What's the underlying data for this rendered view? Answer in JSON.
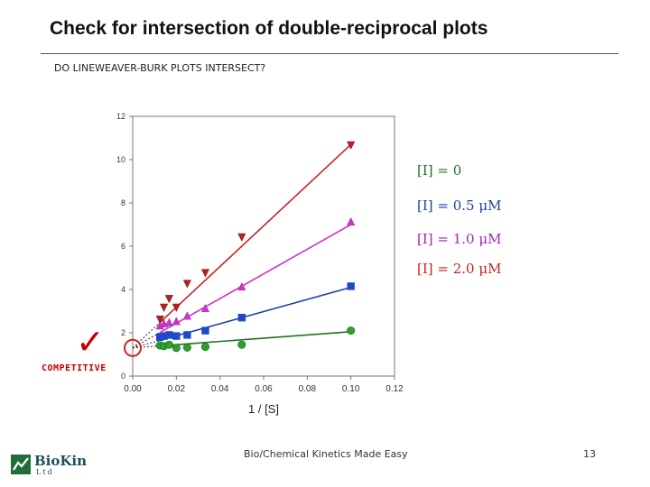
{
  "slide": {
    "title": "Check for intersection of double-reciprocal plots",
    "question": "DO LINEWEAVER-BURK PLOTS INTERSECT?",
    "check_mark": "✓",
    "check_label": "COMPETITIVE",
    "footer": "Bio/Chemical Kinetics Made Easy",
    "page_number": "13"
  },
  "logo": {
    "name": "BioKin",
    "subtitle": "Ltd"
  },
  "legend": [
    {
      "label": "[I] = 0",
      "color": "#207020"
    },
    {
      "label": "[I] = 0.5 μM",
      "color": "#1f3ea0"
    },
    {
      "label": "[I] = 1.0 μM",
      "color": "#9a2aa8"
    },
    {
      "label": "[I] = 2.0 μM",
      "color": "#c62020"
    }
  ],
  "chart_data": {
    "type": "scatter",
    "title": "",
    "xlabel": "1 / [S]",
    "ylabel": "",
    "xlim": [
      0,
      0.12
    ],
    "ylim": [
      0,
      12
    ],
    "x_ticks": [
      "0.00",
      "0.02",
      "0.04",
      "0.06",
      "0.08",
      "0.10",
      "0.12"
    ],
    "y_ticks": [
      "0",
      "2",
      "4",
      "6",
      "8",
      "10",
      "12"
    ],
    "grid": false,
    "series": [
      {
        "color": "#2ca02c",
        "line_color": "#207020",
        "marker": "circle",
        "x": [
          0.0125,
          0.0143,
          0.0167,
          0.02,
          0.025,
          0.0333,
          0.05,
          0.1
        ],
        "y": [
          1.42,
          1.38,
          1.45,
          1.3,
          1.32,
          1.35,
          1.45,
          2.1
        ],
        "fit": {
          "intercept": 1.3,
          "slope": 7.5
        }
      },
      {
        "color": "#1f49c8",
        "line_color": "#1f3ea0",
        "marker": "square",
        "x": [
          0.0125,
          0.0143,
          0.0167,
          0.02,
          0.025,
          0.0333,
          0.05,
          0.1
        ],
        "y": [
          1.8,
          1.85,
          1.9,
          1.85,
          1.9,
          2.1,
          2.7,
          4.15
        ],
        "fit": {
          "intercept": 1.3,
          "slope": 28
        }
      },
      {
        "color": "#cc33cc",
        "line_color": "#cc33cc",
        "marker": "triangle-up",
        "x": [
          0.0125,
          0.0143,
          0.0167,
          0.02,
          0.025,
          0.0333,
          0.05,
          0.1
        ],
        "y": [
          2.3,
          2.4,
          2.45,
          2.5,
          2.75,
          3.1,
          4.1,
          7.1
        ],
        "fit": {
          "intercept": 1.3,
          "slope": 57
        }
      },
      {
        "color": "#b52020",
        "line_color": "#d02020",
        "marker": "triangle-down",
        "x": [
          0.0125,
          0.0143,
          0.0167,
          0.02,
          0.025,
          0.0333,
          0.05,
          0.1
        ],
        "y": [
          2.65,
          3.2,
          3.6,
          3.2,
          4.3,
          4.8,
          6.45,
          10.7
        ],
        "fit": {
          "intercept": 1.3,
          "slope": 94
        }
      }
    ],
    "annotation": {
      "type": "circle",
      "x": 0,
      "y": 1.3,
      "color": "#d02020"
    }
  }
}
